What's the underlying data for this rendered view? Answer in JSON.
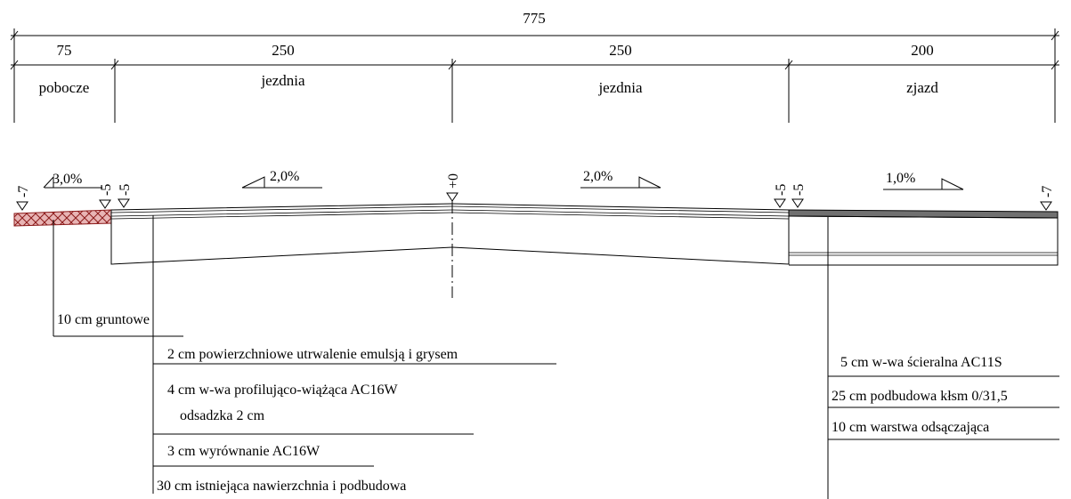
{
  "dimensions": {
    "total": "775",
    "segments": [
      "75",
      "250",
      "250",
      "200"
    ]
  },
  "sections": [
    "pobocze",
    "jezdnia",
    "jezdnia",
    "zjazd"
  ],
  "slopes": [
    "3,0%",
    "2,0%",
    "2,0%",
    "1,0%"
  ],
  "elevations": [
    "-7",
    "-5",
    "-5",
    "+0",
    "-5",
    "-5",
    "-7"
  ],
  "layers": {
    "shoulder": [
      "10 cm gruntowe"
    ],
    "road": [
      "2 cm powierzchniowe utrwalenie emulsją i grysem",
      "4 cm w-wa profilująco-wiążąca AC16W",
      "odsadzka 2 cm",
      "3 cm wyrównanie AC16W",
      "30 cm istniejąca nawierzchnia i podbudowa"
    ],
    "driveway": [
      "5 cm w-wa ścieralna AC11S",
      "25 cm podbudowa kłsm 0/31,5",
      "10 cm warstwa odsączająca"
    ]
  },
  "colors": {
    "shoulder_hatch": "#8b1a1a",
    "shoulder_fill": "#e8b4b4",
    "driveway_wearing": "#707070"
  }
}
